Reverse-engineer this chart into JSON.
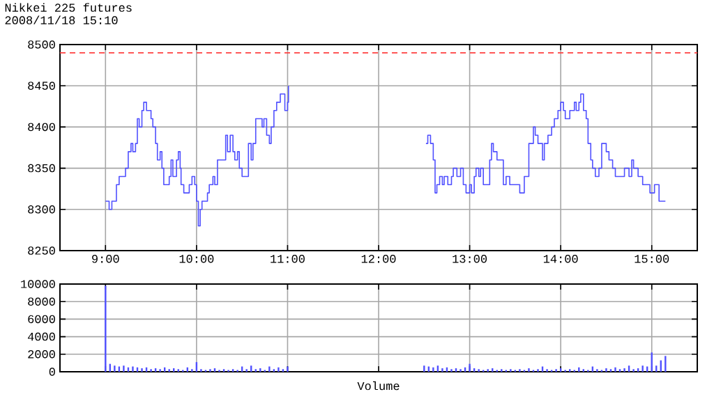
{
  "chart_data": [
    {
      "type": "step",
      "title": "Nikkei 225 futures",
      "subtitle": "2008/11/18 15:10",
      "xlim": [
        8.5,
        15.5
      ],
      "ylim": [
        8250,
        8500
      ],
      "xticks": [
        {
          "value": 9,
          "label": "9:00"
        },
        {
          "value": 10,
          "label": "10:00"
        },
        {
          "value": 11,
          "label": "11:00"
        },
        {
          "value": 12,
          "label": "12:00"
        },
        {
          "value": 13,
          "label": "13:00"
        },
        {
          "value": 14,
          "label": "14:00"
        },
        {
          "value": 15,
          "label": "15:00"
        }
      ],
      "yticks": [
        8250,
        8300,
        8350,
        8400,
        8450,
        8500
      ],
      "grid": true,
      "marker": "none",
      "line_style": "solid",
      "ref_lines": [
        {
          "axis": "y",
          "value": 8490,
          "color": "#ff4040",
          "line_style": "dashed"
        }
      ],
      "series": [
        {
          "color": "#5050ff",
          "x": [
            9.0,
            9.04,
            9.07,
            9.12,
            9.15,
            9.22,
            9.25,
            9.28,
            9.3,
            9.33,
            9.35,
            9.37,
            9.4,
            9.42,
            9.45,
            9.5,
            9.52,
            9.55,
            9.57,
            9.6,
            9.62,
            9.64,
            9.7,
            9.72,
            9.74,
            9.78,
            9.8,
            9.82,
            9.83,
            9.86,
            9.92,
            9.95,
            9.98,
            10.0,
            10.02,
            10.04,
            10.06,
            10.12,
            10.14,
            10.18,
            10.2,
            10.23,
            10.3,
            10.32,
            10.34,
            10.37,
            10.4,
            10.42,
            10.45,
            10.47,
            10.5,
            10.55,
            10.57,
            10.6,
            10.62,
            10.65,
            10.72,
            10.74,
            10.77,
            10.8,
            10.82,
            10.85,
            10.88,
            10.92,
            10.97,
            11.0,
            11.01
          ],
          "values": [
            8310,
            8300,
            8310,
            8330,
            8340,
            8350,
            8370,
            8380,
            8370,
            8380,
            8410,
            8400,
            8420,
            8430,
            8420,
            8410,
            8400,
            8380,
            8360,
            8370,
            8350,
            8330,
            8340,
            8360,
            8340,
            8360,
            8370,
            8350,
            8330,
            8320,
            8330,
            8340,
            8330,
            8310,
            8280,
            8300,
            8310,
            8320,
            8330,
            8340,
            8330,
            8360,
            8360,
            8390,
            8370,
            8390,
            8370,
            8360,
            8370,
            8350,
            8340,
            8340,
            8380,
            8360,
            8380,
            8410,
            8400,
            8410,
            8390,
            8380,
            8400,
            8420,
            8430,
            8440,
            8420,
            8430,
            8450
          ]
        },
        {
          "color": "#5050ff",
          "x": [
            12.52,
            12.54,
            12.57,
            12.6,
            12.62,
            12.64,
            12.67,
            12.7,
            12.72,
            12.76,
            12.8,
            12.82,
            12.86,
            12.9,
            12.93,
            12.96,
            13.0,
            13.02,
            13.05,
            13.07,
            13.1,
            13.12,
            13.15,
            13.22,
            13.24,
            13.26,
            13.3,
            13.37,
            13.4,
            13.44,
            13.55,
            13.6,
            13.65,
            13.7,
            13.72,
            13.75,
            13.8,
            13.82,
            13.86,
            13.9,
            13.93,
            13.97,
            14.0,
            14.03,
            14.05,
            14.1,
            14.15,
            14.17,
            14.2,
            14.22,
            14.25,
            14.28,
            14.3,
            14.33,
            14.35,
            14.38,
            14.42,
            14.45,
            14.5,
            14.53,
            14.57,
            14.6,
            14.7,
            14.75,
            14.78,
            14.8,
            14.85,
            14.9,
            14.98,
            15.03,
            15.08,
            15.15
          ],
          "values": [
            8380,
            8390,
            8380,
            8360,
            8320,
            8330,
            8340,
            8330,
            8340,
            8330,
            8340,
            8350,
            8340,
            8350,
            8330,
            8320,
            8330,
            8320,
            8340,
            8350,
            8340,
            8350,
            8330,
            8360,
            8380,
            8370,
            8360,
            8330,
            8340,
            8330,
            8320,
            8340,
            8380,
            8400,
            8390,
            8380,
            8360,
            8380,
            8390,
            8400,
            8410,
            8420,
            8430,
            8420,
            8410,
            8420,
            8430,
            8420,
            8430,
            8440,
            8420,
            8410,
            8380,
            8360,
            8350,
            8340,
            8350,
            8380,
            8370,
            8360,
            8350,
            8340,
            8350,
            8340,
            8360,
            8350,
            8340,
            8330,
            8320,
            8330,
            8310,
            8310
          ]
        }
      ]
    },
    {
      "type": "bar",
      "xlabel": "Volume",
      "xlim": [
        8.5,
        15.5
      ],
      "ylim": [
        0,
        10000
      ],
      "xticks": [
        9,
        10,
        11,
        12,
        13,
        14,
        15
      ],
      "yticks": [
        0,
        2000,
        4000,
        6000,
        8000,
        10000
      ],
      "tick_labels": "y",
      "grid": true,
      "series": [
        {
          "color": "#5050ff",
          "x": [
            9.0,
            9.05,
            9.1,
            9.15,
            9.2,
            9.25,
            9.3,
            9.35,
            9.4,
            9.45,
            9.5,
            9.55,
            9.6,
            9.65,
            9.7,
            9.75,
            9.8,
            9.85,
            9.9,
            9.95,
            10.0,
            10.05,
            10.1,
            10.15,
            10.2,
            10.25,
            10.3,
            10.35,
            10.4,
            10.45,
            10.5,
            10.55,
            10.6,
            10.65,
            10.7,
            10.75,
            10.8,
            10.85,
            10.9,
            10.95,
            11.0,
            12.5,
            12.55,
            12.6,
            12.65,
            12.7,
            12.75,
            12.8,
            12.85,
            12.9,
            12.95,
            13.0,
            13.05,
            13.1,
            13.15,
            13.2,
            13.25,
            13.3,
            13.35,
            13.4,
            13.45,
            13.5,
            13.55,
            13.6,
            13.65,
            13.7,
            13.75,
            13.8,
            13.85,
            13.9,
            13.95,
            14.0,
            14.05,
            14.1,
            14.15,
            14.2,
            14.25,
            14.3,
            14.35,
            14.4,
            14.45,
            14.5,
            14.55,
            14.6,
            14.65,
            14.7,
            14.75,
            14.8,
            14.85,
            14.9,
            14.95,
            15.0,
            15.05,
            15.1,
            15.15
          ],
          "values": [
            9800,
            900,
            700,
            600,
            700,
            500,
            600,
            500,
            400,
            500,
            300,
            400,
            300,
            500,
            300,
            400,
            300,
            200,
            500,
            300,
            1100,
            300,
            200,
            300,
            400,
            200,
            300,
            200,
            300,
            200,
            600,
            300,
            700,
            300,
            400,
            200,
            600,
            300,
            500,
            300,
            600,
            700,
            600,
            500,
            700,
            400,
            500,
            300,
            400,
            300,
            500,
            900,
            400,
            300,
            200,
            300,
            400,
            200,
            300,
            200,
            300,
            200,
            300,
            200,
            400,
            200,
            300,
            600,
            300,
            200,
            300,
            400,
            200,
            300,
            200,
            500,
            300,
            200,
            600,
            300,
            200,
            400,
            300,
            500,
            300,
            400,
            700,
            300,
            400,
            700,
            600,
            2200,
            700,
            1300,
            1800
          ]
        }
      ]
    }
  ]
}
